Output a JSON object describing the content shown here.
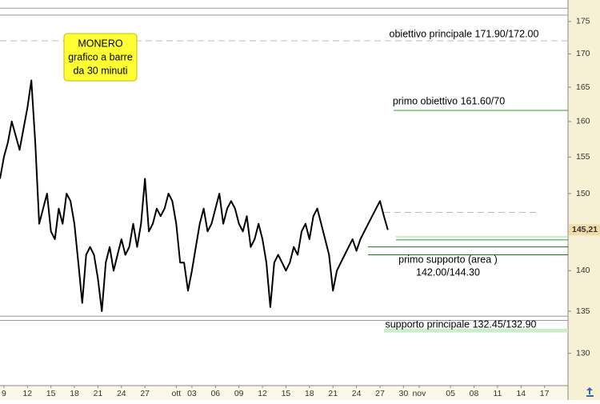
{
  "chart_data": {
    "type": "line",
    "log_scale": true,
    "info_box": {
      "lines": [
        "MONERO",
        "grafico a barre",
        "da 30 minuti"
      ],
      "color": "#ffff33"
    },
    "x": [
      -0.5,
      0,
      0.5,
      1,
      1.5,
      2,
      2.5,
      3,
      3.5,
      4,
      4.5,
      5,
      5.5,
      6,
      6.5,
      7,
      7.5,
      8,
      8.5,
      9,
      9.5,
      10,
      10.5,
      11,
      11.5,
      12,
      12.5,
      13,
      13.5,
      14,
      14.5,
      15,
      15.5,
      16,
      16.5,
      17,
      17.5,
      18,
      18.5,
      19,
      19.5,
      20,
      20.5,
      21,
      21.5,
      22,
      22.5,
      23,
      23.5,
      24,
      24.5,
      25,
      25.5,
      26,
      26.5,
      27,
      27.5,
      28,
      28.5,
      29,
      29.5,
      30,
      30.5,
      31,
      31.5,
      32,
      32.5,
      33,
      33.5,
      34,
      34.5,
      35,
      35.5,
      36,
      36.5,
      37,
      37.5,
      38,
      38.5,
      39,
      39.5,
      40,
      40.5,
      41,
      41.5,
      42,
      42.5,
      43,
      43.5,
      44,
      44.5,
      45,
      45.5,
      46,
      46.5,
      47,
      47.5,
      48,
      48.5,
      49
    ],
    "series": [
      {
        "color": "#000000",
        "values": [
          152,
          155,
          157,
          160,
          158,
          156,
          159,
          162,
          166,
          157,
          146,
          148,
          150,
          145,
          144,
          148,
          146,
          150,
          149,
          146,
          141,
          136,
          142,
          143,
          142,
          139,
          135,
          141,
          143,
          140,
          142,
          144,
          142,
          143,
          146,
          143,
          146,
          152,
          145,
          146,
          148,
          147,
          148,
          150,
          149,
          146,
          141,
          141,
          137.5,
          140,
          143,
          146,
          148,
          145,
          146,
          148,
          150,
          146,
          148,
          149,
          148,
          146,
          145,
          147,
          143,
          144,
          146,
          144,
          141,
          135.5,
          141,
          142,
          141,
          140,
          141,
          143,
          142,
          145,
          146,
          144,
          147,
          148,
          146,
          144,
          142,
          137.5,
          140,
          141,
          142,
          143,
          144,
          142.5,
          144,
          145,
          146,
          147,
          148,
          149,
          147,
          145.2
        ]
      }
    ],
    "xlim": [
      -0.5,
      72
    ],
    "xticks": [
      {
        "value": 0,
        "label": "9"
      },
      {
        "value": 3,
        "label": "12"
      },
      {
        "value": 6,
        "label": "15"
      },
      {
        "value": 9,
        "label": "18"
      },
      {
        "value": 12,
        "label": "21"
      },
      {
        "value": 15,
        "label": "24"
      },
      {
        "value": 18,
        "label": "27"
      },
      {
        "value": 22,
        "label": "ott"
      },
      {
        "value": 24,
        "label": "03"
      },
      {
        "value": 27,
        "label": "06"
      },
      {
        "value": 30,
        "label": "09"
      },
      {
        "value": 33,
        "label": "12"
      },
      {
        "value": 36,
        "label": "15"
      },
      {
        "value": 39,
        "label": "18"
      },
      {
        "value": 42,
        "label": "21"
      },
      {
        "value": 45,
        "label": "24"
      },
      {
        "value": 48,
        "label": "27"
      },
      {
        "value": 51,
        "label": "30"
      },
      {
        "value": 53,
        "label": "nov"
      },
      {
        "value": 57,
        "label": "05"
      },
      {
        "value": 60,
        "label": "08"
      },
      {
        "value": 63,
        "label": "11"
      },
      {
        "value": 66,
        "label": "14"
      },
      {
        "value": 69,
        "label": "17"
      }
    ],
    "ylim": [
      126.3,
      178.4
    ],
    "yticks": [
      130,
      135,
      140,
      145,
      150,
      155,
      160,
      165,
      170,
      175
    ],
    "last_price": {
      "value": 145.21,
      "label": "145,21"
    },
    "levels": [
      {
        "value": 177.1,
        "color": "#999999",
        "dashed": false
      },
      {
        "value": 176.0,
        "color": "#999999",
        "dashed": false
      },
      {
        "value": 172,
        "color": "#bbbbbb",
        "dashed": true
      },
      {
        "value": 161.6,
        "color": "#2e9e2e",
        "dashed": false
      },
      {
        "value": 147.5,
        "color": "#bbbbbb",
        "dashed": true
      },
      {
        "value": 144.3,
        "color": "#8fe08f",
        "dashed": false
      },
      {
        "value": 143.9,
        "color": "#2e9e2e",
        "dashed": false
      },
      {
        "value": 143.0,
        "color": "#1f6f1f",
        "dashed": false
      },
      {
        "value": 142.0,
        "color": "#1f6f1f",
        "dashed": false
      },
      {
        "value": 134.4,
        "color": "#999999",
        "dashed": false
      },
      {
        "value": 133.9,
        "color": "#999999",
        "dashed": false
      }
    ],
    "zones": [
      {
        "range": [
          132.45,
          132.9
        ],
        "color": "#c8f0c8"
      }
    ],
    "annotations": [
      "obiettivo principale 171.90/172.00",
      "primo obiettivo 161.60/70",
      "primo supporto  (area )",
      "142.00/144.30",
      "supporto principale 132.45/132.90"
    ]
  }
}
